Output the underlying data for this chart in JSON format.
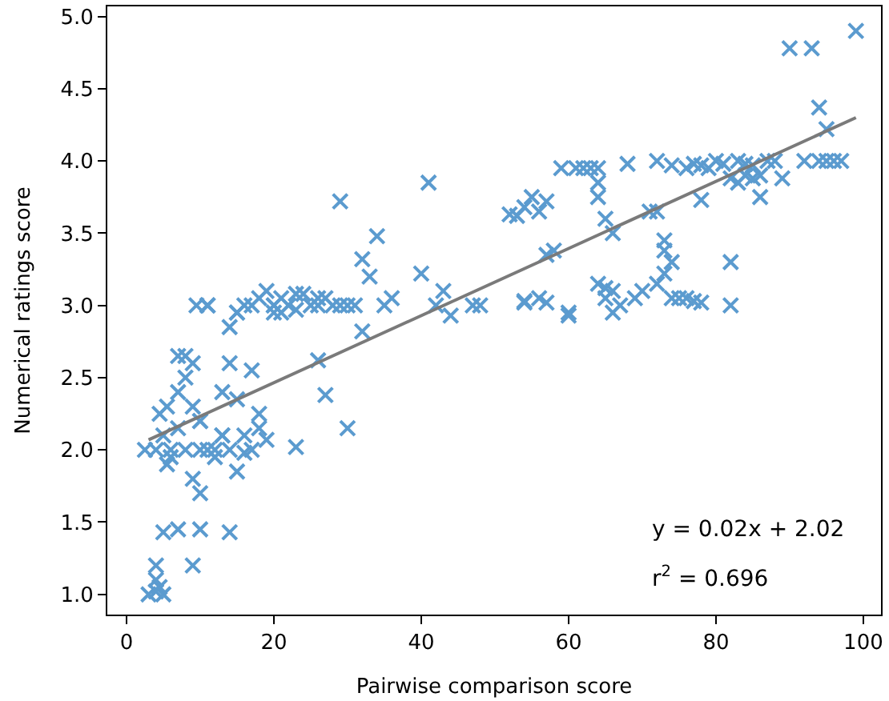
{
  "chart_data": {
    "type": "scatter",
    "xlabel": "Pairwise comparison score",
    "ylabel": "Numerical ratings score",
    "xlim": [
      -2.6,
      102.4
    ],
    "ylim": [
      0.86,
      5.07
    ],
    "xticks": [
      0,
      20,
      40,
      60,
      80,
      100
    ],
    "yticks": [
      {
        "value": 1.0,
        "label": "1.0"
      },
      {
        "value": 1.5,
        "label": "1.5"
      },
      {
        "value": 2.0,
        "label": "2.0"
      },
      {
        "value": 2.5,
        "label": "2.5"
      },
      {
        "value": 3.0,
        "label": "3.0"
      },
      {
        "value": 3.5,
        "label": "3.5"
      },
      {
        "value": 4.0,
        "label": "4.0"
      },
      {
        "value": 4.5,
        "label": "4.5"
      },
      {
        "value": 5.0,
        "label": "5.0"
      }
    ],
    "annotations": [
      "y = 0.02x + 2.02",
      "r$^{2}$ = 0.696"
    ],
    "series": [
      {
        "marker": "cross",
        "color": "#5b9bcf",
        "x": [
          3,
          4,
          5,
          4.5,
          4,
          4,
          5,
          7,
          9,
          10,
          14,
          10,
          9,
          10,
          8,
          9,
          10,
          7,
          11,
          12,
          13,
          14,
          15,
          16,
          12,
          18,
          19,
          23,
          30,
          4,
          2.5,
          5,
          5.5,
          6,
          4.5,
          5.5,
          6,
          7,
          8,
          7,
          8,
          9,
          9.5,
          11,
          11,
          10,
          13,
          15,
          14,
          15,
          16,
          17,
          18,
          19,
          20,
          17,
          20,
          21,
          22,
          23,
          25,
          26,
          27,
          28,
          29,
          30,
          26,
          27,
          29,
          32,
          33,
          34,
          35,
          36,
          32,
          31,
          40,
          41,
          42,
          43,
          44,
          47,
          52,
          53,
          54,
          55,
          56,
          57,
          54,
          56,
          57,
          58,
          57,
          59,
          60,
          60,
          61,
          63,
          64,
          64,
          64,
          65,
          64,
          65,
          66,
          66,
          65,
          67,
          68,
          70,
          69,
          71,
          72,
          72,
          73,
          73,
          74,
          73,
          74,
          75,
          74,
          76,
          77,
          78,
          78,
          80,
          79,
          81,
          83,
          84,
          85,
          82,
          83,
          84,
          85,
          86,
          87,
          88,
          86,
          82,
          82,
          72,
          76,
          78,
          77,
          89,
          90,
          93,
          92,
          94,
          95,
          96,
          97,
          94,
          95,
          99,
          66,
          62,
          54,
          48,
          16,
          14,
          17,
          21,
          23,
          11,
          13,
          18,
          20,
          26,
          24,
          15
        ],
        "values": [
          1.0,
          1.02,
          1.0,
          1.05,
          1.1,
          1.2,
          1.43,
          1.45,
          1.2,
          1.45,
          1.43,
          1.7,
          1.8,
          2.0,
          2.0,
          2.3,
          2.2,
          2.15,
          2.0,
          2.0,
          2.1,
          2.0,
          1.85,
          2.1,
          1.95,
          2.15,
          2.07,
          2.02,
          2.15,
          2.0,
          2.0,
          2.1,
          1.9,
          1.95,
          2.25,
          2.3,
          2.0,
          2.4,
          2.5,
          2.65,
          2.65,
          2.6,
          3.0,
          3.0,
          3.0,
          2.2,
          2.4,
          2.35,
          2.85,
          2.95,
          3.0,
          3.0,
          3.05,
          3.1,
          3.0,
          2.55,
          2.95,
          3.05,
          3.0,
          3.08,
          3.0,
          3.0,
          3.05,
          3.0,
          3.0,
          3.0,
          2.62,
          2.38,
          3.72,
          3.32,
          3.2,
          3.48,
          3.0,
          3.05,
          2.82,
          3.0,
          3.22,
          3.85,
          3.0,
          3.1,
          2.93,
          3.0,
          3.63,
          3.62,
          3.68,
          3.75,
          3.65,
          3.72,
          3.02,
          3.05,
          3.35,
          3.38,
          3.02,
          3.95,
          2.95,
          2.93,
          3.95,
          3.95,
          3.95,
          3.85,
          3.75,
          3.6,
          3.15,
          3.12,
          3.1,
          2.95,
          3.05,
          3.0,
          3.98,
          3.1,
          3.05,
          3.65,
          3.65,
          3.15,
          3.45,
          3.38,
          3.3,
          3.22,
          3.05,
          3.05,
          3.97,
          3.05,
          3.03,
          3.02,
          3.97,
          4.0,
          3.95,
          3.98,
          4.0,
          3.98,
          3.97,
          3.88,
          3.85,
          3.9,
          3.88,
          3.9,
          4.0,
          4.0,
          3.75,
          3.3,
          3.0,
          4.0,
          3.95,
          3.73,
          3.98,
          3.88,
          4.78,
          4.78,
          4.0,
          4.0,
          4.0,
          4.0,
          4.0,
          4.37,
          4.22,
          4.9,
          3.5,
          3.95,
          3.03,
          3.0,
          1.98,
          2.6,
          2.0,
          2.95,
          2.97,
          3.0,
          2.1,
          2.25,
          3.0,
          3.05,
          3.08,
          2.95
        ]
      },
      {
        "type": "line",
        "marker": "none",
        "color": "#7a7a7a",
        "x": [
          3,
          99
        ],
        "values": [
          2.07,
          4.3
        ]
      }
    ]
  }
}
